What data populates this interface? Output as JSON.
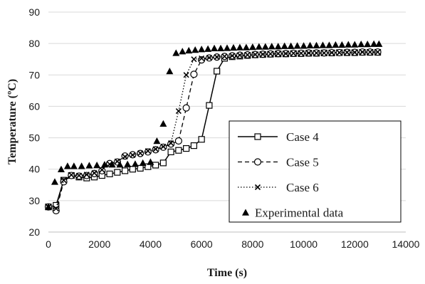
{
  "chart_data": {
    "type": "line",
    "title": "",
    "xlabel": "Time (s)",
    "ylabel": "Temperature (ºC)",
    "xlim": [
      0,
      14000
    ],
    "ylim": [
      20,
      90
    ],
    "xticks": [
      0,
      2000,
      4000,
      6000,
      8000,
      10000,
      12000,
      14000
    ],
    "yticks": [
      20,
      30,
      40,
      50,
      60,
      70,
      80,
      90
    ],
    "xtick_labels": [
      "0",
      "2000",
      "4000",
      "6000",
      "8000",
      "10000",
      "12000",
      "14000"
    ],
    "ytick_labels": [
      "20",
      "30",
      "40",
      "50",
      "60",
      "70",
      "80",
      "90"
    ],
    "grid": "horizontal",
    "legend_position": "right",
    "series": [
      {
        "name": "Case 4",
        "line": "solid",
        "marker": "square",
        "x": [
          0,
          300,
          600,
          900,
          1200,
          1500,
          1800,
          2100,
          2400,
          2700,
          3000,
          3300,
          3600,
          3900,
          4200,
          4500,
          4800,
          5100,
          5400,
          5700,
          6000,
          6300,
          6600,
          6900,
          7200,
          7500,
          7800,
          8100,
          8400,
          8700,
          9000,
          9300,
          9600,
          9900,
          10200,
          10500,
          10800,
          11100,
          11400,
          11700,
          12000,
          12300,
          12600,
          12900
        ],
        "y": [
          28,
          28.5,
          36.5,
          38,
          37.5,
          37.2,
          37.5,
          38,
          38.5,
          39,
          39.5,
          40,
          40.3,
          40.8,
          41.3,
          42,
          45.5,
          46,
          46.6,
          47.5,
          49.5,
          60.3,
          71.2,
          75.3,
          75.8,
          76,
          76.2,
          76.4,
          76.5,
          76.6,
          76.7,
          76.7,
          76.8,
          76.8,
          76.9,
          76.9,
          77,
          77,
          77.1,
          77.1,
          77.1,
          77.2,
          77.2,
          77.2
        ]
      },
      {
        "name": "Case 5",
        "line": "dashed",
        "marker": "circle",
        "x": [
          0,
          300,
          600,
          900,
          1200,
          1500,
          1800,
          2100,
          2400,
          2700,
          3000,
          3300,
          3600,
          3900,
          4200,
          4500,
          4800,
          5100,
          5400,
          5700,
          6000,
          6300,
          6600,
          6900,
          7200,
          7500,
          7800,
          8100,
          8400,
          8700,
          9000,
          9300,
          9600,
          9900,
          10200,
          10500,
          10800,
          11100,
          11400,
          11700,
          12000,
          12300,
          12600,
          12900
        ],
        "y": [
          28,
          26.8,
          36,
          38,
          37.8,
          38,
          38.6,
          39.5,
          41.8,
          42.3,
          44.2,
          44.6,
          45,
          45.5,
          46.2,
          47,
          48,
          49,
          59.5,
          70.2,
          74.8,
          75.4,
          75.7,
          75.9,
          76.1,
          76.3,
          76.4,
          76.5,
          76.6,
          76.7,
          76.8,
          76.8,
          76.9,
          76.9,
          77,
          77,
          77,
          77.1,
          77.1,
          77.2,
          77.2,
          77.3,
          77.3,
          77.3
        ]
      },
      {
        "name": "Case 6",
        "line": "dotted",
        "marker": "x",
        "x": [
          0,
          300,
          600,
          900,
          1200,
          1500,
          1800,
          2100,
          2400,
          2700,
          3000,
          3300,
          3600,
          3900,
          4200,
          4500,
          4800,
          5100,
          5400,
          5700,
          6000,
          6300,
          6600,
          6900,
          7200,
          7500,
          7800,
          8100,
          8400,
          8700,
          9000,
          9300,
          9600,
          9900,
          10200,
          10500,
          10800,
          11100,
          11400,
          11700,
          12000,
          12300,
          12600,
          12900
        ],
        "y": [
          28,
          27.5,
          36.5,
          38.2,
          38,
          38.3,
          38.8,
          39.8,
          41.6,
          42.5,
          44,
          44.5,
          45.1,
          45.8,
          46.4,
          47.2,
          48.3,
          58.5,
          70,
          75,
          75.3,
          75.5,
          75.7,
          75.9,
          76.1,
          76.3,
          76.4,
          76.5,
          76.6,
          76.7,
          76.8,
          76.8,
          76.9,
          76.9,
          77,
          77,
          77,
          77.1,
          77.1,
          77.2,
          77.2,
          77.3,
          77.3,
          77.3
        ]
      },
      {
        "name": "Experimental data",
        "line": "none",
        "marker": "triangle",
        "x": [
          0,
          250,
          500,
          750,
          1000,
          1300,
          1600,
          1900,
          2200,
          2500,
          2800,
          3100,
          3400,
          3700,
          4000,
          4250,
          4500,
          4750,
          5000,
          5250,
          5500,
          5750,
          6000,
          6250,
          6500,
          6750,
          7000,
          7250,
          7500,
          7750,
          8000,
          8250,
          8500,
          8750,
          9000,
          9250,
          9500,
          9750,
          10000,
          10250,
          10500,
          10750,
          11000,
          11250,
          11500,
          11750,
          12000,
          12250,
          12500,
          12750,
          12950
        ],
        "y": [
          28,
          36,
          40,
          41,
          41,
          41,
          41.2,
          41.3,
          41.5,
          41.5,
          41.5,
          41.6,
          41.7,
          42,
          42.3,
          49,
          54.5,
          71.2,
          77,
          77.5,
          77.8,
          78,
          78.2,
          78.3,
          78.5,
          78.5,
          78.6,
          78.7,
          78.8,
          78.8,
          78.9,
          79,
          79,
          79.1,
          79.1,
          79.2,
          79.2,
          79.3,
          79.3,
          79.4,
          79.4,
          79.5,
          79.5,
          79.6,
          79.6,
          79.7,
          79.7,
          79.8,
          79.8,
          79.9,
          79.9
        ]
      }
    ]
  }
}
